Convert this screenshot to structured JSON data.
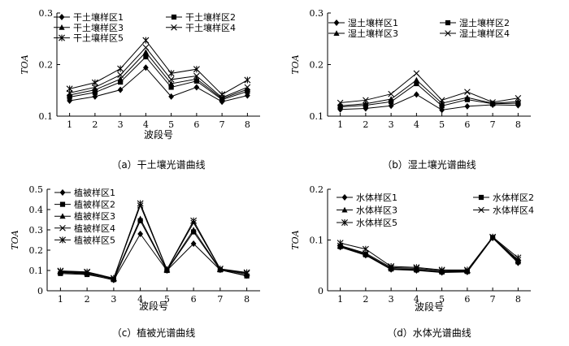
{
  "chart_data": [
    {
      "type": "line",
      "caption": "（a）干土壤光谱曲线",
      "xlabel": "波段号",
      "ylabel": "TOA",
      "x": [
        1,
        2,
        3,
        4,
        5,
        6,
        7,
        8
      ],
      "xticks": [
        "1",
        "2",
        "3",
        "4",
        "5",
        "6",
        "7",
        "8"
      ],
      "ylim": [
        0.1,
        0.3
      ],
      "yticks": [
        "0.1",
        "0.2",
        "0.3"
      ],
      "ytick_values": [
        0.1,
        0.2,
        0.3
      ],
      "legend_columns": 2,
      "series": [
        {
          "name": "干土壤样区1",
          "marker": "diamond",
          "values": [
            0.13,
            0.138,
            0.151,
            0.194,
            0.138,
            0.156,
            0.128,
            0.14
          ]
        },
        {
          "name": "干土壤样区2",
          "marker": "square",
          "values": [
            0.137,
            0.146,
            0.166,
            0.215,
            0.156,
            0.168,
            0.132,
            0.148
          ]
        },
        {
          "name": "干土壤样区3",
          "marker": "triangle",
          "values": [
            0.141,
            0.151,
            0.172,
            0.224,
            0.163,
            0.172,
            0.134,
            0.152
          ]
        },
        {
          "name": "干土壤样区4",
          "marker": "x",
          "values": [
            0.145,
            0.156,
            0.18,
            0.233,
            0.171,
            0.178,
            0.136,
            0.156
          ]
        },
        {
          "name": "干土壤样区5",
          "marker": "star",
          "values": [
            0.153,
            0.165,
            0.192,
            0.247,
            0.183,
            0.191,
            0.142,
            0.17
          ]
        }
      ]
    },
    {
      "type": "line",
      "caption": "（b）湿土壤光谱曲线",
      "xlabel": "",
      "ylabel": "TOA",
      "x": [
        1,
        2,
        3,
        4,
        5,
        6,
        7,
        8
      ],
      "xticks": [
        "1",
        "2",
        "3",
        "4",
        "5",
        "6",
        "7",
        "8"
      ],
      "ylim": [
        0.1,
        0.3
      ],
      "yticks": [
        "0.1",
        "0.2",
        "0.3"
      ],
      "ytick_values": [
        0.1,
        0.2,
        0.3
      ],
      "legend_columns": 2,
      "series": [
        {
          "name": "湿土壤样区1",
          "marker": "diamond",
          "values": [
            0.113,
            0.115,
            0.12,
            0.142,
            0.112,
            0.119,
            0.122,
            0.121
          ]
        },
        {
          "name": "湿土壤样区2",
          "marker": "square",
          "values": [
            0.118,
            0.121,
            0.128,
            0.163,
            0.12,
            0.132,
            0.124,
            0.125
          ]
        },
        {
          "name": "湿土壤样区3",
          "marker": "triangle",
          "values": [
            0.12,
            0.124,
            0.133,
            0.17,
            0.125,
            0.136,
            0.125,
            0.128
          ]
        },
        {
          "name": "湿土壤样区4",
          "marker": "x",
          "values": [
            0.126,
            0.131,
            0.143,
            0.183,
            0.131,
            0.147,
            0.127,
            0.135
          ]
        }
      ]
    },
    {
      "type": "line",
      "caption": "（c）植被光谱曲线",
      "xlabel": "波段号",
      "ylabel": "TOA",
      "x": [
        1,
        2,
        3,
        4,
        5,
        6,
        7,
        8
      ],
      "xticks": [
        "1",
        "2",
        "3",
        "4",
        "5",
        "6",
        "7",
        "8"
      ],
      "ylim": [
        0,
        0.5
      ],
      "yticks": [
        "0",
        "0.1",
        "0.2",
        "0.3",
        "0.4",
        "0.5"
      ],
      "ytick_values": [
        0,
        0.1,
        0.2,
        0.3,
        0.4,
        0.5
      ],
      "legend_columns": 1,
      "series": [
        {
          "name": "植被样区1",
          "marker": "diamond",
          "values": [
            0.09,
            0.083,
            0.053,
            0.28,
            0.1,
            0.232,
            0.103,
            0.075
          ]
        },
        {
          "name": "植被样区2",
          "marker": "square",
          "values": [
            0.085,
            0.08,
            0.055,
            0.345,
            0.1,
            0.29,
            0.103,
            0.073
          ]
        },
        {
          "name": "植被样区3",
          "marker": "triangle",
          "values": [
            0.092,
            0.087,
            0.058,
            0.355,
            0.102,
            0.3,
            0.105,
            0.082
          ]
        },
        {
          "name": "植被样区4",
          "marker": "x",
          "values": [
            0.095,
            0.09,
            0.06,
            0.42,
            0.104,
            0.335,
            0.107,
            0.086
          ]
        },
        {
          "name": "植被样区5",
          "marker": "star",
          "values": [
            0.098,
            0.093,
            0.062,
            0.43,
            0.105,
            0.345,
            0.108,
            0.09
          ]
        }
      ]
    },
    {
      "type": "line",
      "caption": "（d）水体光谱曲线",
      "xlabel": "波段号",
      "ylabel": "TOA",
      "x": [
        1,
        2,
        3,
        4,
        5,
        6,
        7,
        8
      ],
      "xticks": [
        "1",
        "2",
        "3",
        "4",
        "5",
        "6",
        "7",
        "8"
      ],
      "ylim": [
        0,
        0.2
      ],
      "yticks": [
        "0",
        "0.1",
        "0.2"
      ],
      "ytick_values": [
        0,
        0.1,
        0.2
      ],
      "legend_columns": 2,
      "series": [
        {
          "name": "水体样区1",
          "marker": "diamond",
          "values": [
            0.086,
            0.07,
            0.042,
            0.04,
            0.036,
            0.037,
            0.104,
            0.055
          ]
        },
        {
          "name": "水体样区2",
          "marker": "square",
          "values": [
            0.087,
            0.071,
            0.043,
            0.041,
            0.037,
            0.038,
            0.105,
            0.057
          ]
        },
        {
          "name": "水体样区3",
          "marker": "triangle",
          "values": [
            0.088,
            0.072,
            0.044,
            0.042,
            0.038,
            0.039,
            0.105,
            0.059
          ]
        },
        {
          "name": "水体样区4",
          "marker": "x",
          "values": [
            0.089,
            0.074,
            0.046,
            0.044,
            0.04,
            0.04,
            0.105,
            0.061
          ]
        },
        {
          "name": "水体样区5",
          "marker": "star",
          "values": [
            0.094,
            0.082,
            0.048,
            0.046,
            0.041,
            0.041,
            0.106,
            0.065
          ]
        }
      ]
    }
  ]
}
